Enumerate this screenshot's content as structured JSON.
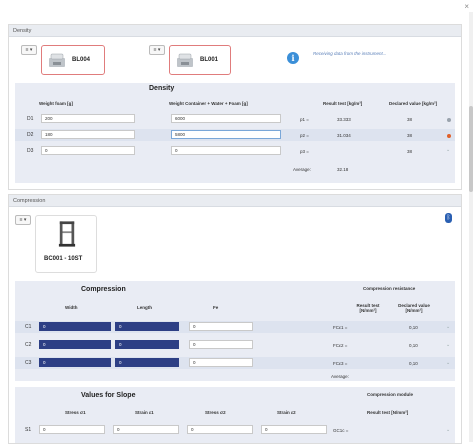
{
  "window": {
    "close_glyph": "×"
  },
  "density": {
    "panel_title": "Density",
    "menu_label": "≡ ▾",
    "scales": [
      {
        "label": "BL004",
        "icon": "scale-icon"
      },
      {
        "label": "BL001",
        "icon": "scale-icon"
      }
    ],
    "info_text": "Receiving data from the instrument...",
    "table_title": "Density",
    "headers": {
      "weight_foam": "Weight foam [g]",
      "weight_container": "Weight Container + Water + Foam [g]",
      "result": "Result test [kg/m³]",
      "declared": "Declared value [kg/m³]"
    },
    "rows": [
      {
        "label": "D1",
        "weight_foam": "200",
        "weight_container": "6000",
        "p": "p1 =",
        "result": "33.333",
        "declared": "38"
      },
      {
        "label": "D2",
        "weight_foam": "180",
        "weight_container": "5800",
        "p": "p2 =",
        "result": "31.034",
        "declared": "38"
      },
      {
        "label": "D3",
        "weight_foam": "0",
        "weight_container": "0",
        "p": "p3 =",
        "result": "",
        "declared": "38"
      }
    ],
    "average_label": "Average:",
    "average_value": "32.18",
    "status_colors": {
      "ok": "#9aa3ad",
      "alert": "#e0612a"
    }
  },
  "compression": {
    "panel_title": "Compression",
    "menu_label": "≡ ▾",
    "device_label": "BC001 - 10ST",
    "table_title": "Compression",
    "resistance_title": "Compression resistance",
    "headers": {
      "width": "Width",
      "length": "Length",
      "fe": "Fe",
      "result": "Result test [N/mm²]",
      "declared": "Declared value [N/mm²]"
    },
    "rows": [
      {
        "label": "C1",
        "width": "0",
        "length": "0",
        "fe": "0",
        "fc": "FCε1 =",
        "declared": "0,10"
      },
      {
        "label": "C2",
        "width": "0",
        "length": "0",
        "fe": "0",
        "fc": "FCε2 =",
        "declared": "0,10"
      },
      {
        "label": "C3",
        "width": "0",
        "length": "0",
        "fe": "0",
        "fc": "FCε3 =",
        "declared": "0,10"
      }
    ],
    "average_label": "Average:"
  },
  "slope": {
    "title": "Values for Slope",
    "module_title": "Compression module",
    "headers": {
      "stress1": "Stress σ1",
      "strain1": "Strain ε1",
      "stress2": "Stress σ2",
      "strain2": "Strain ε2",
      "result": "Result test [N/mm²]"
    },
    "rows": [
      {
        "label": "S1",
        "stress1": "0",
        "strain1": "0",
        "stress2": "0",
        "strain2": "0",
        "gc": "GC1c ="
      }
    ]
  }
}
